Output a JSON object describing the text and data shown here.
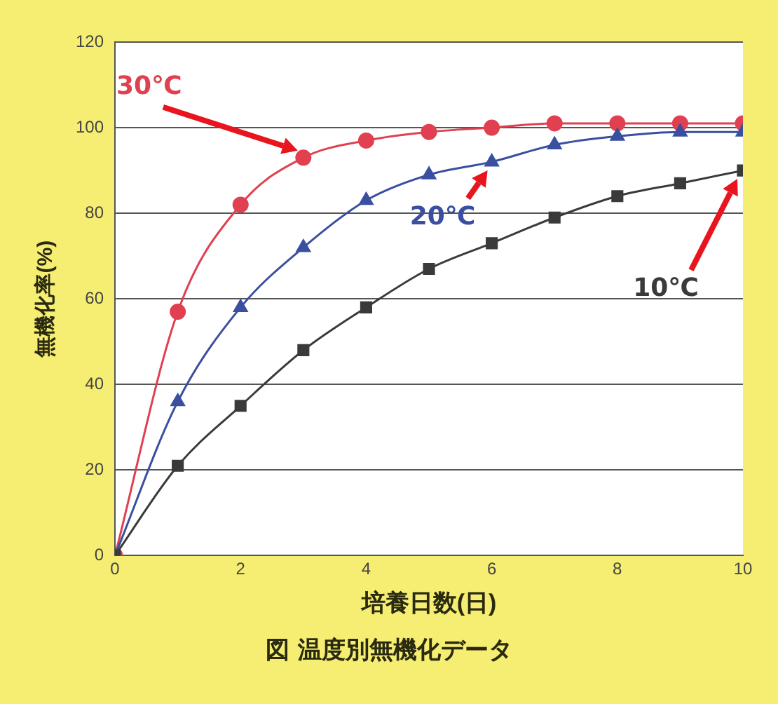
{
  "chart_data": {
    "type": "line",
    "title": "図 温度別無機化データ",
    "xlabel": "培養日数(日)",
    "ylabel": "無機化率(%)",
    "x": [
      0,
      1,
      2,
      3,
      4,
      5,
      6,
      7,
      8,
      9,
      10
    ],
    "xlim": [
      0,
      10
    ],
    "xticks": [
      0,
      2,
      4,
      6,
      8,
      10
    ],
    "ylim": [
      0,
      120
    ],
    "yticks": [
      0,
      20,
      40,
      60,
      80,
      100,
      120
    ],
    "grid": "y",
    "legend": false,
    "series": [
      {
        "name": "10℃",
        "color": "#3a3a3a",
        "marker": "square",
        "values": [
          0,
          21,
          35,
          48,
          58,
          67,
          73,
          79,
          84,
          87,
          90
        ]
      },
      {
        "name": "20℃",
        "color": "#3a4fa0",
        "marker": "triangle",
        "values": [
          0,
          36,
          58,
          72,
          83,
          89,
          92,
          96,
          98,
          99,
          99
        ]
      },
      {
        "name": "30℃",
        "color": "#e04050",
        "marker": "circle",
        "values": [
          0,
          57,
          82,
          93,
          97,
          99,
          100,
          101,
          101,
          101,
          101
        ]
      }
    ]
  }
}
